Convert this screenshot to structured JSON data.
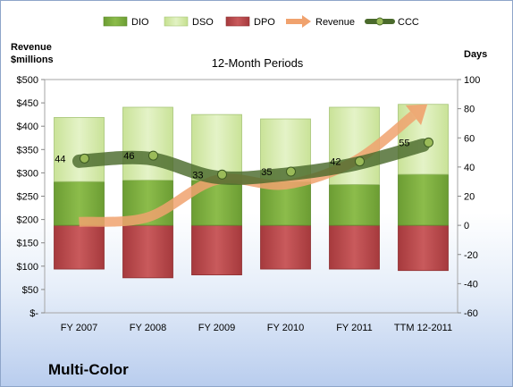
{
  "company": "Multi-Color",
  "chart_data": {
    "type": "bar",
    "title": "12-Month Periods",
    "ylabel_left": "Revenue\n$millions",
    "ylabel_right": "Days",
    "categories": [
      "FY 2007",
      "FY 2008",
      "FY 2009",
      "FY 2010",
      "FY 2011",
      "TTM 12-2011"
    ],
    "left_axis": {
      "min": 0,
      "max": 500,
      "step": 50,
      "tick_labels": [
        "$-",
        "$50",
        "$100",
        "$150",
        "$200",
        "$250",
        "$300",
        "$350",
        "$400",
        "$450",
        "$500"
      ]
    },
    "right_axis": {
      "min": -60,
      "max": 100,
      "step": 20,
      "tick_labels": [
        "-60",
        "-40",
        "-20",
        "0",
        "20",
        "40",
        "60",
        "80",
        "100"
      ]
    },
    "legend": {
      "position": "top",
      "items": [
        {
          "name": "DIO",
          "color": "#77a93c"
        },
        {
          "name": "DSO",
          "color": "#d2e8a8"
        },
        {
          "name": "DPO",
          "color": "#b9474a"
        },
        {
          "name": "Revenue",
          "color": "#f0a26e"
        },
        {
          "name": "CCC",
          "color": "#4a6a2c"
        }
      ]
    },
    "series": [
      {
        "name": "DIO",
        "axis": "right",
        "color": "#77a93c",
        "values": [
          30,
          31,
          31,
          30,
          28,
          35
        ]
      },
      {
        "name": "DSO",
        "axis": "right",
        "color": "#d2e8a8",
        "values": [
          44,
          50,
          45,
          43,
          53,
          48
        ]
      },
      {
        "name": "DPO",
        "axis": "right",
        "color": "#b9474a",
        "values": [
          -30,
          -36,
          -34,
          -30,
          -30,
          -31
        ]
      },
      {
        "name": "Revenue",
        "axis": "left",
        "color": "#f0a26e",
        "values": [
          195,
          205,
          285,
          275,
          325,
          440
        ]
      },
      {
        "name": "CCC",
        "axis": "right",
        "color": "#4a6a2c",
        "values": [
          44,
          46,
          33,
          35,
          42,
          55
        ]
      }
    ],
    "data_labels": {
      "series": "CCC",
      "labels": [
        "44",
        "46",
        "33",
        "35",
        "42",
        "55"
      ]
    },
    "grid": false
  }
}
